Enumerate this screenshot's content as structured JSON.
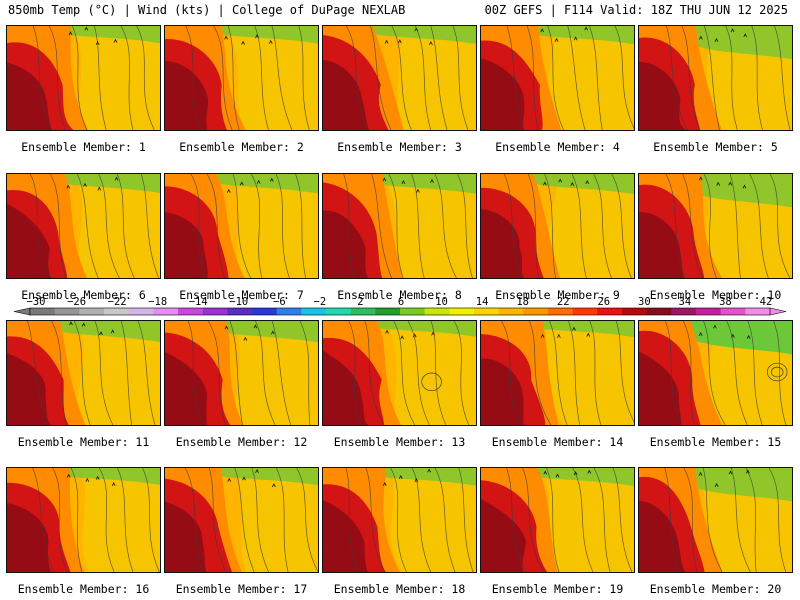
{
  "header": {
    "left": "850mb Temp (°C) | Wind (kts) | College of DuPage NEXLAB",
    "right": "00Z GEFS | F114 Valid: 18Z THU JUN 12 2025"
  },
  "panels": [
    {
      "label": "Ensemble Member: 1",
      "variant": 0
    },
    {
      "label": "Ensemble Member: 2",
      "variant": 1
    },
    {
      "label": "Ensemble Member: 3",
      "variant": 2
    },
    {
      "label": "Ensemble Member: 4",
      "variant": 3
    },
    {
      "label": "Ensemble Member: 5",
      "variant": 4
    },
    {
      "label": "Ensemble Member: 6",
      "variant": 5
    },
    {
      "label": "Ensemble Member: 7",
      "variant": 6
    },
    {
      "label": "Ensemble Member: 8",
      "variant": 7
    },
    {
      "label": "Ensemble Member: 9",
      "variant": 8
    },
    {
      "label": "Ensemble Member: 10",
      "variant": 9
    },
    {
      "label": "Ensemble Member: 11",
      "variant": 10
    },
    {
      "label": "Ensemble Member: 12",
      "variant": 11
    },
    {
      "label": "Ensemble Member: 13",
      "variant": 12
    },
    {
      "label": "Ensemble Member: 14",
      "variant": 13
    },
    {
      "label": "Ensemble Member: 15",
      "variant": 14
    },
    {
      "label": "Ensemble Member: 16",
      "variant": 15
    },
    {
      "label": "Ensemble Member: 17",
      "variant": 16
    },
    {
      "label": "Ensemble Member: 18",
      "variant": 17
    },
    {
      "label": "Ensemble Member: 19",
      "variant": 18
    },
    {
      "label": "Ensemble Member: 20",
      "variant": 19
    }
  ],
  "colorbar": {
    "labels": [
      "-30",
      "-26",
      "-22",
      "-18",
      "-14",
      "-10",
      "-6",
      "-2",
      "2",
      "6",
      "10",
      "14",
      "18",
      "22",
      "26",
      "30",
      "34",
      "38",
      "42"
    ],
    "colors": [
      "#7a7a7a",
      "#969696",
      "#b0b0b0",
      "#c8c8c8",
      "#d2b4e6",
      "#e38ef0",
      "#cc44e6",
      "#9b30d8",
      "#5a2cc8",
      "#2a38d6",
      "#2e7ef0",
      "#1fc0e8",
      "#24d6b0",
      "#2abf60",
      "#1f9f2e",
      "#7acc20",
      "#c8e614",
      "#f0f000",
      "#ffd200",
      "#ffb400",
      "#ff9600",
      "#ff6e00",
      "#ff3c00",
      "#e61414",
      "#b40a0a",
      "#8c0a1e",
      "#a01466",
      "#c81e9e",
      "#e650c8",
      "#f08ce6"
    ]
  },
  "colors": {
    "darkred": "#8c0a14",
    "red": "#d21414",
    "orange": "#ff8c00",
    "lightorange": "#ffb400",
    "yellow": "#f0d200",
    "green": "#64c83c",
    "contour": "#3c3c3c"
  }
}
